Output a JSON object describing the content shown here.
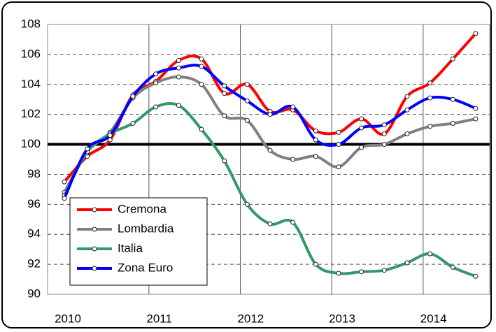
{
  "chart_data": {
    "type": "line",
    "categories": [
      "2010",
      null,
      null,
      null,
      "2011",
      null,
      null,
      null,
      "2012",
      null,
      null,
      null,
      "2013",
      null,
      null,
      null,
      "2014",
      null,
      null
    ],
    "series": [
      {
        "name": "Cremona",
        "color": "#ff0000",
        "values": [
          97.5,
          99.2,
          100.3,
          103.3,
          104.2,
          105.6,
          105.7,
          103.4,
          104.0,
          102.2,
          102.3,
          100.9,
          100.8,
          101.7,
          100.7,
          103.2,
          104.1,
          105.7,
          107.4
        ]
      },
      {
        "name": "Lombardia",
        "color": "#808080",
        "values": [
          96.8,
          99.5,
          100.8,
          103.1,
          104.1,
          104.5,
          104.0,
          101.9,
          101.6,
          99.6,
          99.0,
          99.2,
          98.5,
          99.8,
          100.0,
          100.7,
          101.2,
          101.4,
          101.7
        ]
      },
      {
        "name": "Italia",
        "color": "#339966",
        "values": [
          96.6,
          99.5,
          100.7,
          101.4,
          102.5,
          102.6,
          101.0,
          98.9,
          96.0,
          94.7,
          94.8,
          92.0,
          91.4,
          91.5,
          91.6,
          92.1,
          92.7,
          91.8,
          91.2
        ]
      },
      {
        "name": "Zona Euro",
        "color": "#0000ff",
        "values": [
          96.4,
          99.7,
          100.6,
          103.2,
          104.7,
          105.1,
          105.2,
          103.9,
          102.9,
          102.0,
          102.5,
          100.3,
          100.0,
          101.1,
          101.3,
          102.3,
          103.1,
          103.0,
          102.4
        ]
      }
    ],
    "ylim": [
      90,
      108
    ],
    "yticks": [
      90,
      92,
      94,
      96,
      98,
      100,
      102,
      104,
      106,
      108
    ],
    "reference_line": 100,
    "grid": true,
    "legend": "lower-left"
  }
}
